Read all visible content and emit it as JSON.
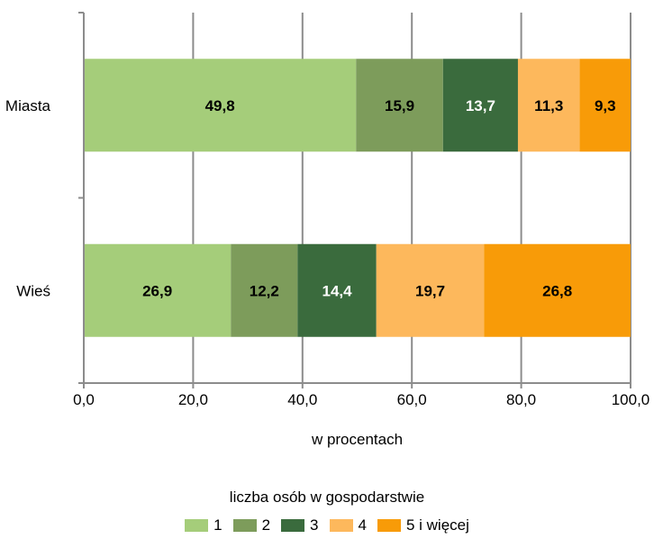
{
  "chart_data": {
    "type": "bar",
    "orientation": "horizontal",
    "stacked": true,
    "categories": [
      "Miasta",
      "Wieś"
    ],
    "series": [
      {
        "name": "1",
        "color": "#a5cd7a",
        "label_color": "#000000",
        "values": [
          49.8,
          26.9
        ]
      },
      {
        "name": "2",
        "color": "#7d9c5b",
        "label_color": "#000000",
        "values": [
          15.9,
          12.2
        ]
      },
      {
        "name": "3",
        "color": "#3a6b3d",
        "label_color": "#ffffff",
        "values": [
          13.7,
          14.4
        ]
      },
      {
        "name": "4",
        "color": "#fdb85c",
        "label_color": "#000000",
        "values": [
          11.3,
          19.7
        ]
      },
      {
        "name": "5 i więcej",
        "color": "#f89b08",
        "label_color": "#000000",
        "values": [
          9.3,
          26.8
        ]
      }
    ],
    "xlim": [
      0,
      100
    ],
    "xticks": [
      "0,0",
      "20,0",
      "40,0",
      "60,0",
      "80,0",
      "100,0"
    ],
    "xlabel": "w procentach",
    "legend_title": "liczba osób w gospodarstwie",
    "legend_position": "bottom",
    "grid": "vertical"
  }
}
